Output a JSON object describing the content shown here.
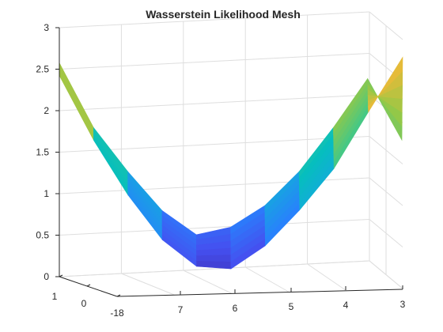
{
  "chart_data": {
    "type": "surface",
    "title": "Wasserstein Likelihood Mesh",
    "xlabel": "",
    "ylabel": "",
    "zlabel": "",
    "grid": true,
    "axes": {
      "z": {
        "range": [
          0,
          3
        ],
        "ticks": [
          "0",
          "0.5",
          "1",
          "1.5",
          "2",
          "2.5",
          "3"
        ]
      },
      "front_axis": {
        "range": [
          8,
          3
        ],
        "ticks": [
          "7",
          "6",
          "5",
          "4",
          "3"
        ]
      },
      "side_axis": {
        "ticks": [
          "1",
          "0",
          "-18"
        ]
      }
    },
    "mesh": {
      "front_edge": [
        {
          "x": 8.0,
          "z": 2.5
        },
        {
          "x": 7.5,
          "z": 1.72
        },
        {
          "x": 7.0,
          "z": 1.06
        },
        {
          "x": 6.5,
          "z": 0.52
        },
        {
          "x": 6.0,
          "z": 0.2
        },
        {
          "x": 5.5,
          "z": 0.17
        },
        {
          "x": 5.0,
          "z": 0.45
        },
        {
          "x": 4.5,
          "z": 0.88
        },
        {
          "x": 4.0,
          "z": 1.38
        },
        {
          "x": 3.5,
          "z": 2.06
        },
        {
          "x": 3.0,
          "z": 2.72
        }
      ],
      "back_edge": [
        {
          "x": 8.0,
          "z": 2.5
        },
        {
          "x": 7.5,
          "z": 1.72
        },
        {
          "x": 7.0,
          "z": 1.19
        },
        {
          "x": 6.5,
          "z": 0.72
        },
        {
          "x": 6.0,
          "z": 0.43
        },
        {
          "x": 5.5,
          "z": 0.52
        },
        {
          "x": 5.0,
          "z": 0.78
        },
        {
          "x": 4.5,
          "z": 1.19
        },
        {
          "x": 4.0,
          "z": 1.72
        },
        {
          "x": 3.5,
          "z": 2.31
        },
        {
          "x": 3.0,
          "z": 1.57
        }
      ]
    },
    "colormap": "parula"
  }
}
